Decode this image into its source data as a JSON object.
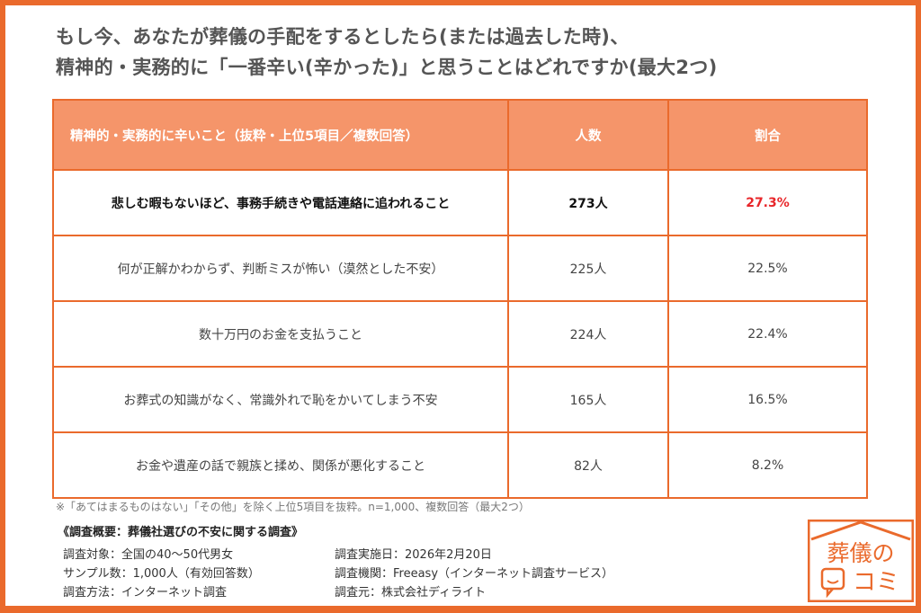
{
  "title": {
    "line1": "もし今、あなたが葬儀の手配をするとしたら(または過去した時)、",
    "line2": "精神的・実務的に「一番辛い(辛かった)」と思うことはどれですか(最大2つ)"
  },
  "table": {
    "headers": [
      "精神的・実務的に辛いこと（抜粋・上位5項目／複数回答）",
      "人数",
      "割合"
    ],
    "rows": [
      {
        "item": "悲しむ暇もないほど、事務手続きや電話連絡に追われること",
        "count": "273人",
        "pct": "27.3%"
      },
      {
        "item": "何が正解かわからず、判断ミスが怖い（漠然とした不安）",
        "count": "225人",
        "pct": "22.5%"
      },
      {
        "item": "数十万円のお金を支払うこと",
        "count": "224人",
        "pct": "22.4%"
      },
      {
        "item": "お葬式の知識がなく、常識外れで恥をかいてしまう不安",
        "count": "165人",
        "pct": "16.5%"
      },
      {
        "item": "お金や遺産の話で親族と揉め、関係が悪化すること",
        "count": "82人",
        "pct": "8.2%"
      }
    ]
  },
  "note": "※「あてはまるものはない」「その他」を除く上位5項目を抜粋。n=1,000、複数回答（最大2つ）",
  "summary": {
    "title": "《調査概要：葬儀社選びの不安に関する調査》",
    "left": [
      "調査対象：全国の40～50代男女",
      "サンプル数：1,000人（有効回答数）",
      "調査方法：インターネット調査"
    ],
    "right": [
      "調査実施日：2026年2月20日",
      "調査機関：Freeasy（インターネット調査サービス）",
      "調査元：株式会社ディライト"
    ]
  },
  "logo": {
    "line1": "葬儀の",
    "line2": "コミ"
  },
  "colors": {
    "accent": "#ea6a2c",
    "header_bg": "#f5956a",
    "highlight": "#e8262a"
  }
}
